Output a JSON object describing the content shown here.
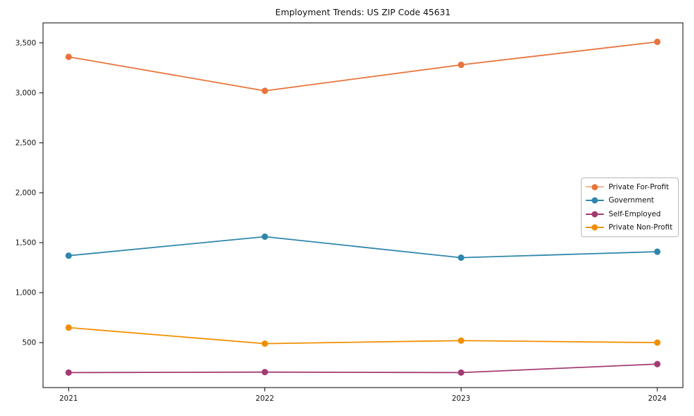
{
  "chart_data": {
    "type": "line",
    "title": "Employment Trends: US ZIP Code 45631",
    "categories": [
      "2021",
      "2022",
      "2023",
      "2024"
    ],
    "series": [
      {
        "name": "Private For-Profit",
        "color": "#E8743B",
        "values": [
          3360,
          3020,
          3280,
          3510
        ]
      },
      {
        "name": "Government",
        "color": "#2E86AB",
        "values": [
          1370,
          1560,
          1350,
          1410
        ]
      },
      {
        "name": "Self-Employed",
        "color": "#A23B72",
        "values": [
          200,
          205,
          200,
          285
        ]
      },
      {
        "name": "Private Non-Profit",
        "color": "#F18F01",
        "values": [
          650,
          490,
          520,
          500
        ]
      }
    ],
    "xlabel": "",
    "ylabel": "",
    "ylim": [
      50,
      3700
    ],
    "yticks": [
      500,
      1000,
      1500,
      2000,
      2500,
      3000,
      3500
    ],
    "ytick_labels": [
      "500",
      "1,000",
      "1,500",
      "2,000",
      "2,500",
      "3,000",
      "3,500"
    ],
    "grid": false,
    "legend_position": "center right",
    "marker": "o",
    "axis_color": "#000000",
    "tick_label_color": "#111111"
  }
}
